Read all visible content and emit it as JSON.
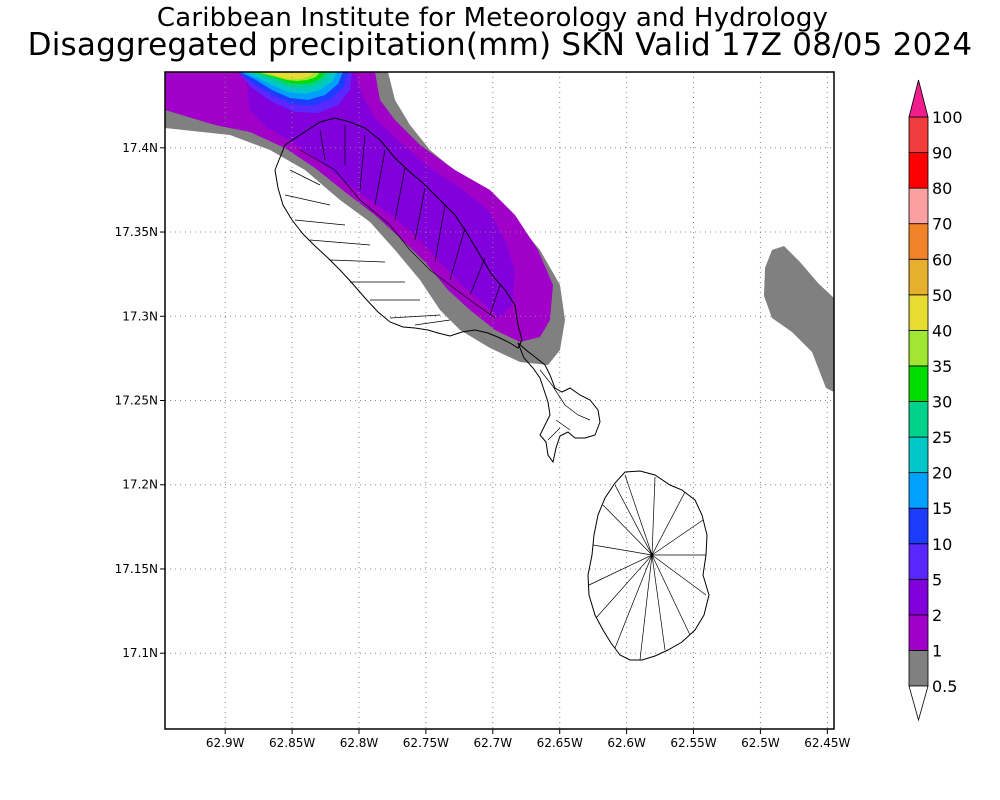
{
  "titles": {
    "line1": "Caribbean Institute for Meteorology and Hydrology",
    "line2": "Disaggregated precipitation(mm) SKN Valid 17Z 08/05 2024"
  },
  "map": {
    "lon_range": [
      -62.945,
      -62.445
    ],
    "lat_range": [
      17.055,
      17.445
    ],
    "lon_ticks": [
      {
        "value": -62.9,
        "label": "62.9W"
      },
      {
        "value": -62.85,
        "label": "62.85W"
      },
      {
        "value": -62.8,
        "label": "62.8W"
      },
      {
        "value": -62.75,
        "label": "62.75W"
      },
      {
        "value": -62.7,
        "label": "62.7W"
      },
      {
        "value": -62.65,
        "label": "62.65W"
      },
      {
        "value": -62.6,
        "label": "62.6W"
      },
      {
        "value": -62.55,
        "label": "62.55W"
      },
      {
        "value": -62.5,
        "label": "62.5W"
      },
      {
        "value": -62.45,
        "label": "62.45W"
      }
    ],
    "lat_ticks": [
      {
        "value": 17.4,
        "label": "17.4N"
      },
      {
        "value": 17.35,
        "label": "17.35N"
      },
      {
        "value": 17.3,
        "label": "17.3N"
      },
      {
        "value": 17.25,
        "label": "17.25N"
      },
      {
        "value": 17.2,
        "label": "17.2N"
      },
      {
        "value": 17.15,
        "label": "17.15N"
      },
      {
        "value": 17.1,
        "label": "17.1N"
      }
    ],
    "grid": "dotted"
  },
  "colorbar": {
    "levels": [
      {
        "label": "0.5",
        "color": "#808080"
      },
      {
        "label": "1",
        "color": "#a000c8"
      },
      {
        "label": "2",
        "color": "#8200dc"
      },
      {
        "label": "5",
        "color": "#5a28ff"
      },
      {
        "label": "10",
        "color": "#1e3cff"
      },
      {
        "label": "15",
        "color": "#00a0ff"
      },
      {
        "label": "20",
        "color": "#00c8c8"
      },
      {
        "label": "25",
        "color": "#00d28c"
      },
      {
        "label": "30",
        "color": "#00dc00"
      },
      {
        "label": "35",
        "color": "#a0e632"
      },
      {
        "label": "40",
        "color": "#e6dc32"
      },
      {
        "label": "50",
        "color": "#e6af2d"
      },
      {
        "label": "60",
        "color": "#f08228"
      },
      {
        "label": "70",
        "color": "#faa0a0"
      },
      {
        "label": "80",
        "color": "#ff0000"
      },
      {
        "label": "90",
        "color": "#f03c3c"
      },
      {
        "label": "100",
        "color": "#f01e8c"
      }
    ],
    "top_arrow_color": "#f01e8c",
    "bottom_arrow_color": "#ffffff"
  }
}
